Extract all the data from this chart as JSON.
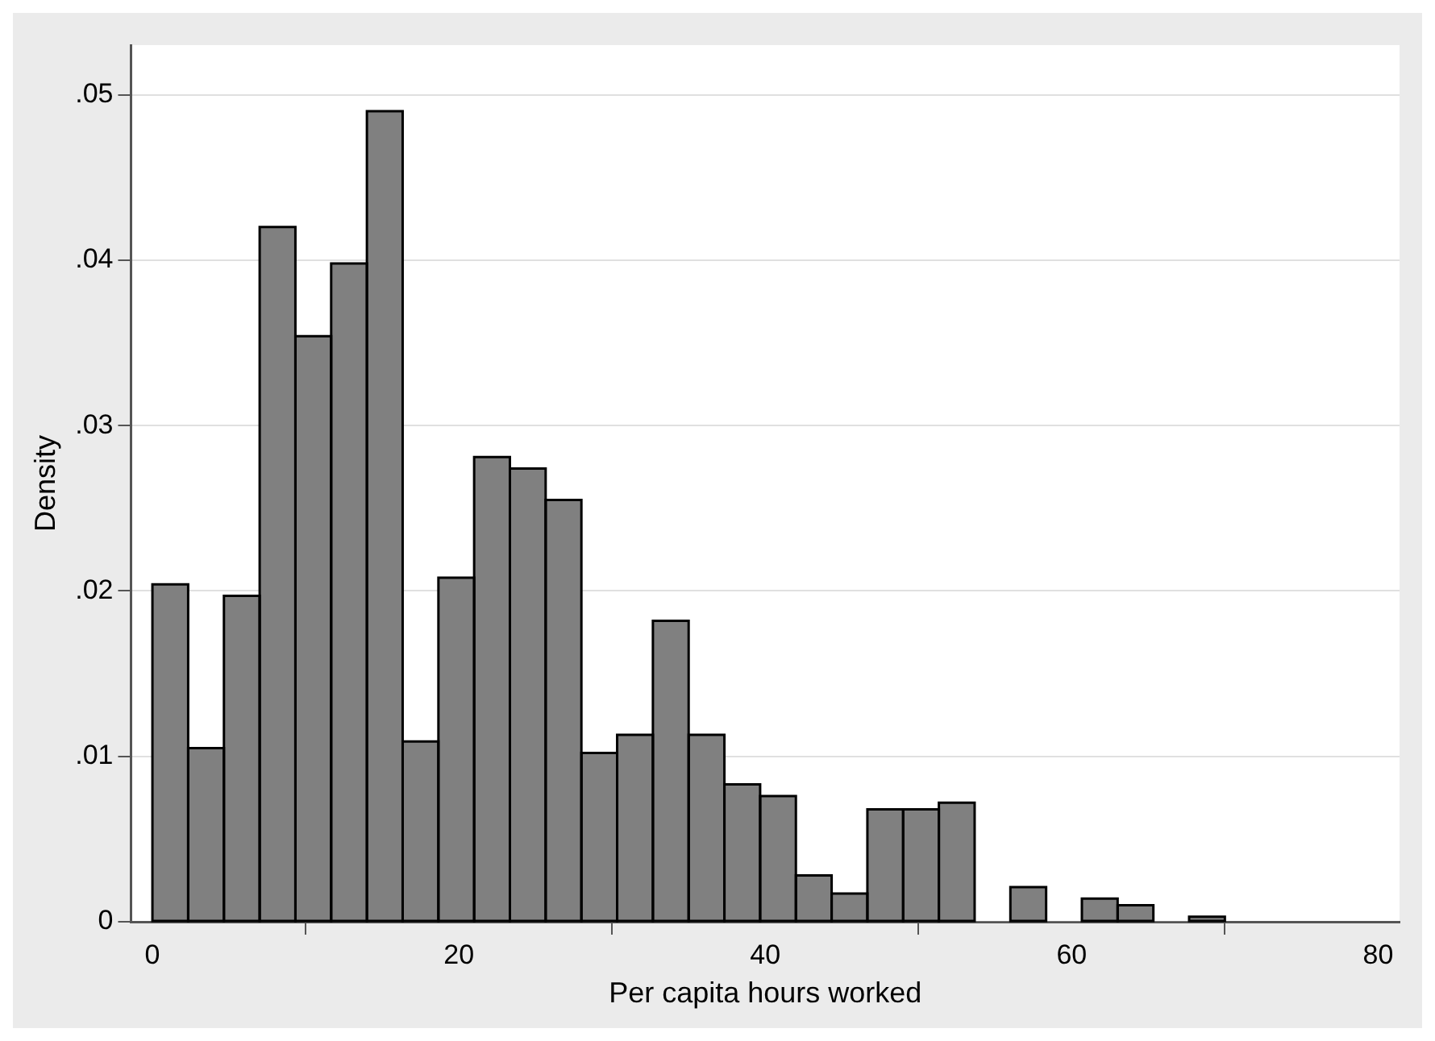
{
  "chart_data": {
    "type": "histogram",
    "xlabel": "Per capita hours worked",
    "ylabel": "Density",
    "bins": [
      0,
      2.333,
      4.667,
      7,
      9.333,
      11.667,
      14,
      16.333,
      18.667,
      21,
      23.333,
      25.667,
      28,
      30.333,
      32.667,
      35,
      37.333,
      39.667,
      42,
      44.333,
      46.667,
      49,
      51.333,
      53.667,
      56,
      58.333,
      60.667,
      63,
      65.333,
      67.667,
      70
    ],
    "values": [
      0.0204,
      0.0105,
      0.0197,
      0.042,
      0.0354,
      0.0398,
      0.049,
      0.0109,
      0.0208,
      0.0281,
      0.0274,
      0.0255,
      0.0102,
      0.0113,
      0.0182,
      0.0113,
      0.0083,
      0.0076,
      0.0028,
      0.0017,
      0.0068,
      0.0068,
      0.0072,
      0,
      0.0021,
      0,
      0.0014,
      0.001,
      0,
      0.0003
    ],
    "color": "#808080",
    "xlim": [
      -1.4,
      81.4
    ],
    "xticks": [
      0,
      20,
      40,
      60,
      80
    ],
    "ylim": [
      0,
      0.053
    ],
    "yticks": [
      0,
      {
        "value": 0.01,
        "label": ".01"
      },
      {
        "value": 0.02,
        "label": ".02"
      },
      {
        "value": 0.03,
        "label": ".03"
      },
      {
        "value": 0.04,
        "label": ".04"
      },
      {
        "value": 0.05,
        "label": ".05"
      }
    ],
    "grid": "y",
    "legend": false
  }
}
